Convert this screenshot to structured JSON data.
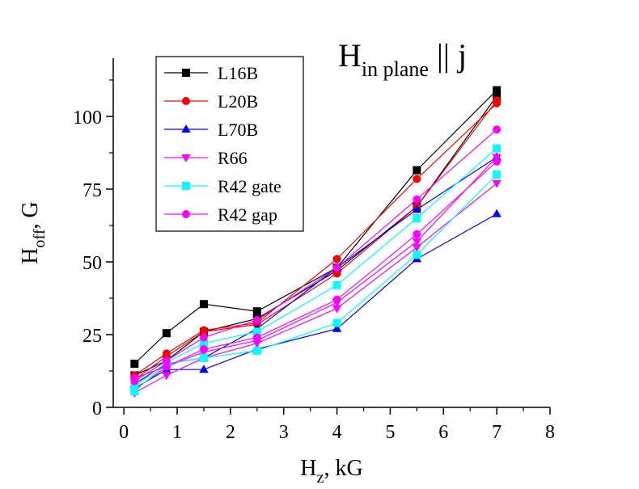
{
  "chart_data": {
    "type": "line",
    "title": {
      "main": "H",
      "subscript": "in plane",
      "suffix": " || j"
    },
    "xlabel": {
      "main": "H",
      "subscript": "z",
      "suffix": ", kG"
    },
    "ylabel": {
      "main": "H",
      "subscript": "off",
      "suffix": ", G"
    },
    "xlim": [
      -0.2,
      8
    ],
    "ylim": [
      0,
      120
    ],
    "xticks": [
      0,
      1,
      2,
      3,
      4,
      5,
      6,
      7,
      8
    ],
    "yticks": [
      0,
      25,
      50,
      75,
      100
    ],
    "legend_position": "top-left",
    "grid": false,
    "series": [
      {
        "name": "L16B",
        "color": "#000000",
        "marker": "square",
        "x": [
          0.2,
          0.8,
          1.5,
          2.5,
          4,
          5.5,
          7
        ],
        "y": [
          15,
          25.5,
          35.5,
          33,
          48,
          81.5,
          109
        ],
        "x2": [
          0.2,
          0.8,
          1.5,
          2.5,
          4,
          5.5,
          7
        ],
        "y2": [
          11,
          16,
          26,
          30.5,
          47,
          69,
          107
        ]
      },
      {
        "name": "L20B",
        "color": "#ff0000",
        "marker": "circle",
        "x": [
          0.2,
          0.8,
          1.5,
          2.5,
          4,
          5.5,
          7
        ],
        "y": [
          11,
          18.5,
          26.5,
          29,
          51,
          78.5,
          104.5
        ],
        "x2": [
          0.2,
          0.8,
          1.5,
          2.5,
          4,
          5.5,
          7
        ],
        "y2": [
          9.5,
          17.5,
          26,
          28.5,
          46,
          69,
          105.5
        ]
      },
      {
        "name": "L70B",
        "color": "#0000ff",
        "marker": "triangle-up",
        "x": [
          0.2,
          0.8,
          1.5,
          2.5,
          4,
          5.5,
          7
        ],
        "y": [
          6.5,
          13,
          13,
          20,
          27,
          51,
          66.5
        ],
        "x2": [
          0.2,
          0.8,
          1.5,
          2.5,
          4,
          5.5,
          7
        ],
        "y2": [
          8,
          15,
          17,
          27,
          48,
          68,
          86
        ]
      },
      {
        "name": "R66",
        "color": "#ff00ff",
        "marker": "triangle-down",
        "x": [
          0.2,
          0.8,
          1.5,
          2.5,
          4,
          5.5,
          7
        ],
        "y": [
          5,
          11,
          17,
          22,
          34,
          55,
          77
        ],
        "x2": [
          0.2,
          0.8,
          1.5,
          2.5,
          4,
          5.5,
          7
        ],
        "y2": [
          6,
          14,
          19,
          23,
          36,
          57,
          86
        ]
      },
      {
        "name": "R42 gate",
        "color": "#00ffff",
        "marker": "square",
        "x": [
          0.2,
          0.8,
          1.5,
          2.5,
          4,
          5.5,
          7
        ],
        "y": [
          5.5,
          15,
          17,
          19.5,
          29,
          52.5,
          80
        ],
        "x2": [
          0.2,
          0.8,
          1.5,
          2.5,
          4,
          5.5,
          7
        ],
        "y2": [
          7,
          15.5,
          22,
          26,
          42,
          65,
          89
        ]
      },
      {
        "name": "R42 gap",
        "color": "#ff00ff",
        "marker": "circle",
        "x": [
          0.2,
          0.8,
          1.5,
          2.5,
          4,
          5.5,
          7
        ],
        "y": [
          10,
          14,
          20,
          24,
          37,
          59.5,
          84.5
        ],
        "x2": [
          0.2,
          0.8,
          1.5,
          2.5,
          4,
          5.5,
          7
        ],
        "y2": [
          9,
          16,
          24,
          30,
          48,
          71.5,
          95.5
        ]
      }
    ]
  }
}
